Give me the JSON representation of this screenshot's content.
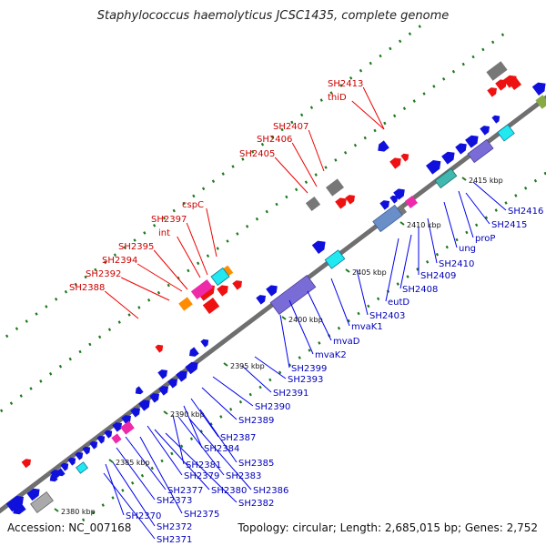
{
  "title": "Staphylococcus haemolyticus JCSC1435, complete genome",
  "accession_text": "Accession: NC_007168",
  "stats_text": "Topology: circular; Length: 2,685,015 bp; Genes: 2,752",
  "scale_labels": [
    "2380 kbp",
    "2385 kbp",
    "2390 kbp",
    "2395 kbp",
    "2400 kbp",
    "2405 kbp",
    "2410 kbp",
    "2415 kbp"
  ],
  "upper_labels": [
    "SH2413",
    "thiD",
    "SH2407",
    "SH2406",
    "SH2405",
    "cspC",
    "SH2397",
    "int",
    "SH2395",
    "SH2394",
    "SH2392",
    "SH2388"
  ],
  "lower_labels": [
    "SH2416",
    "SH2415",
    "proP",
    "ung",
    "SH2410",
    "SH2409",
    "SH2408",
    "eutD",
    "SH2403",
    "mvaK1",
    "mvaD",
    "mvaK2",
    "SH2399",
    "SH2393",
    "SH2391",
    "SH2390",
    "SH2389",
    "SH2387",
    "SH2384",
    "SH2385",
    "SH2381",
    "SH2383",
    "SH2386",
    "SH2379",
    "SH2380",
    "SH2382",
    "SH2377",
    "SH2375",
    "SH2373",
    "SH2370",
    "SH2372",
    "SH2371"
  ],
  "colors": {
    "backbone": "#8c8c8c",
    "forward_gene": "#1010dd",
    "reverse_gene": "#ee1111",
    "label_upper": "#cc0000",
    "label_lower": "#0000bb",
    "tick_green": "#1d7a1d"
  }
}
